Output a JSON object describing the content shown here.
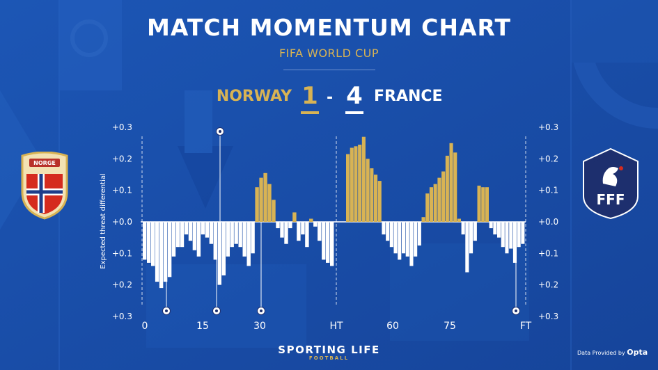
{
  "header": {
    "title": "MATCH MOMENTUM CHART",
    "subtitle": "FIFA WORLD CUP"
  },
  "score": {
    "home_team": "NORWAY",
    "home_goals": "1",
    "separator": "-",
    "away_goals": "4",
    "away_team": "FRANCE"
  },
  "badges": {
    "home_text": "NORGE",
    "away_text": "FFF"
  },
  "footer": {
    "brand": "SPORTING LIFE",
    "brand_sub": "FOOTBALL",
    "credit_prefix": "Data Provided by",
    "credit_name": "Opta"
  },
  "colors": {
    "background": "#1a4fa8",
    "home_positive": "#d8b354",
    "away_negative": "#ffffff",
    "text": "#ffffff"
  },
  "chart_data": {
    "type": "bar",
    "ylabel": "Expected threat differential",
    "y_ticks_left": [
      "+0.3",
      "+0.2",
      "+0.1",
      "+0.0",
      "+0.1",
      "+0.2",
      "+0.3"
    ],
    "y_ticks_right": [
      "+0.3",
      "+0.2",
      "+0.1",
      "+0.0",
      "+0.1",
      "+0.2",
      "+0.3"
    ],
    "y_tick_values": [
      0.3,
      0.2,
      0.1,
      0.0,
      -0.1,
      -0.2,
      -0.3
    ],
    "ylim": [
      -0.3,
      0.3
    ],
    "x_ticks": [
      {
        "label": "0",
        "minute": 0
      },
      {
        "label": "15",
        "minute": 15
      },
      {
        "label": "30",
        "minute": 30
      },
      {
        "label": "HT",
        "minute": 45
      },
      {
        "label": "60",
        "minute": 60
      },
      {
        "label": "75",
        "minute": 75
      },
      {
        "label": "FT",
        "minute": 90
      }
    ],
    "xlim": [
      0,
      90
    ],
    "series": [
      {
        "team": "NORWAY (above axis)",
        "values": [
          0.035,
          0.14,
          0.157,
          0.125,
          0.07,
          0.06,
          0.02,
          0.008,
          0.03,
          0.01,
          0.002,
          0.005,
          0.016
        ]
      },
      {
        "team": "FRANCE (below axis)",
        "values": [
          -0.12,
          -0.13,
          -0.14,
          -0.19,
          -0.21,
          -0.19,
          -0.175,
          -0.11,
          -0.08,
          -0.08,
          -0.04,
          -0.06,
          -0.09
        ]
      }
    ],
    "first_half": {
      "minutes": [
        1,
        2,
        3,
        4,
        5,
        6,
        7,
        8,
        9,
        10,
        11,
        12,
        13,
        14,
        15,
        16,
        17,
        18,
        19,
        20,
        21,
        22,
        23,
        24,
        25,
        26,
        27,
        28,
        29,
        30,
        31,
        32,
        33,
        34,
        35,
        36,
        37,
        38,
        39,
        40,
        41,
        42,
        43,
        44,
        45,
        46
      ],
      "values": [
        -0.12,
        -0.13,
        -0.14,
        -0.19,
        -0.21,
        -0.19,
        -0.175,
        -0.11,
        -0.08,
        -0.08,
        -0.04,
        -0.06,
        -0.09,
        -0.11,
        -0.04,
        -0.05,
        -0.07,
        -0.12,
        -0.2,
        -0.17,
        -0.11,
        -0.08,
        -0.07,
        -0.08,
        -0.11,
        -0.14,
        -0.1,
        0.11,
        0.14,
        0.155,
        0.12,
        0.07,
        -0.02,
        -0.05,
        -0.07,
        -0.02,
        0.03,
        -0.06,
        -0.04,
        -0.08,
        0.01,
        -0.015,
        -0.06,
        -0.12,
        -0.13,
        -0.14
      ]
    },
    "second_half": {
      "minutes": [
        46,
        47,
        48,
        49,
        50,
        51,
        52,
        53,
        54,
        55,
        56,
        57,
        58,
        59,
        60,
        61,
        62,
        63,
        64,
        65,
        66,
        67,
        68,
        69,
        70,
        71,
        72,
        73,
        74,
        75,
        76,
        77,
        78,
        79,
        80,
        81,
        82,
        83,
        84,
        85,
        86,
        87,
        88,
        89,
        90
      ],
      "values": [
        0.215,
        0.235,
        0.24,
        0.245,
        0.27,
        0.2,
        0.17,
        0.15,
        0.13,
        -0.04,
        -0.06,
        -0.08,
        -0.1,
        -0.12,
        -0.1,
        -0.11,
        -0.14,
        -0.11,
        -0.075,
        0.015,
        0.09,
        0.11,
        0.12,
        0.14,
        0.16,
        0.21,
        0.25,
        0.22,
        0.01,
        -0.04,
        -0.16,
        -0.1,
        -0.06,
        0.115,
        0.11,
        0.11,
        -0.02,
        -0.04,
        -0.05,
        -0.08,
        -0.1,
        -0.085,
        -0.13,
        -0.08,
        -0.07
      ]
    },
    "goals": [
      {
        "minute": 5,
        "team": "FRANCE"
      },
      {
        "minute": 20,
        "team": "NORWAY"
      },
      {
        "minute": 20,
        "team": "FRANCE"
      },
      {
        "minute": 31,
        "team": "FRANCE"
      },
      {
        "minute": 88,
        "team": "FRANCE"
      }
    ],
    "grid": false,
    "legend": "none"
  }
}
